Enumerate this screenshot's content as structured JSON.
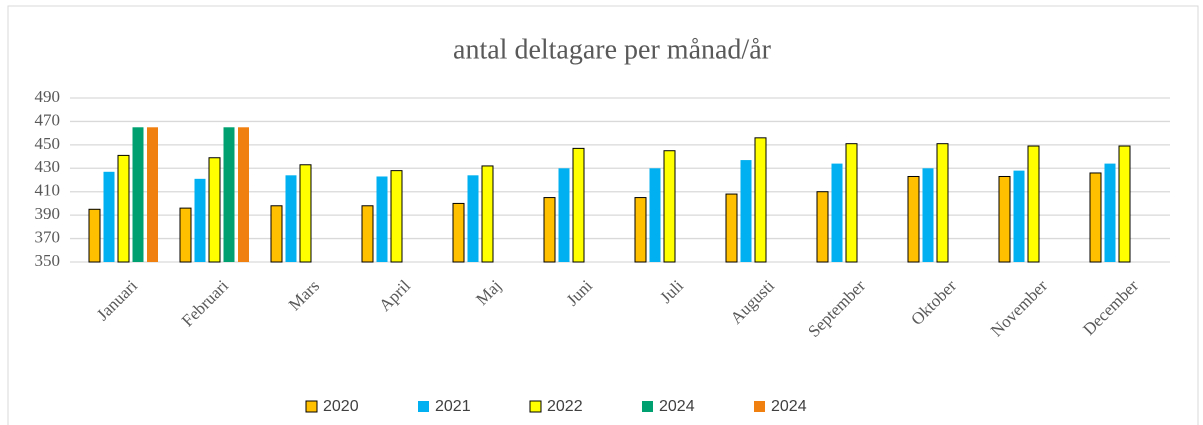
{
  "chart_data": {
    "type": "bar",
    "title": "antal deltagare per månad/år",
    "categories": [
      "Januari",
      "Februari",
      "Mars",
      "April",
      "Maj",
      "Juni",
      "Juli",
      "Augusti",
      "September",
      "Oktober",
      "November",
      "December"
    ],
    "series": [
      {
        "name": "2020",
        "color": "#FFC000",
        "edgecolor": "#000000",
        "values": [
          395,
          396,
          398,
          398,
          400,
          405,
          405,
          408,
          410,
          423,
          423,
          426
        ]
      },
      {
        "name": "2021",
        "color": "#00B0F0",
        "edgecolor": null,
        "values": [
          427,
          421,
          424,
          423,
          424,
          430,
          430,
          437,
          434,
          430,
          428,
          434
        ]
      },
      {
        "name": "2022",
        "color": "#FFFF00",
        "edgecolor": "#000000",
        "values": [
          441,
          439,
          433,
          428,
          432,
          447,
          445,
          456,
          451,
          451,
          449,
          449
        ]
      },
      {
        "name": "2024",
        "color": "#00A070",
        "edgecolor": null,
        "values": [
          465,
          465,
          null,
          null,
          null,
          null,
          null,
          null,
          null,
          null,
          null,
          null
        ]
      },
      {
        "name": "2024",
        "color": "#F08010",
        "edgecolor": null,
        "values": [
          465,
          465,
          null,
          null,
          null,
          null,
          null,
          null,
          null,
          null,
          null,
          null
        ]
      }
    ],
    "ylim": [
      350,
      490
    ],
    "yticks": [
      350,
      370,
      390,
      410,
      430,
      450,
      470,
      490
    ],
    "grid": true,
    "legend": "bottom"
  }
}
